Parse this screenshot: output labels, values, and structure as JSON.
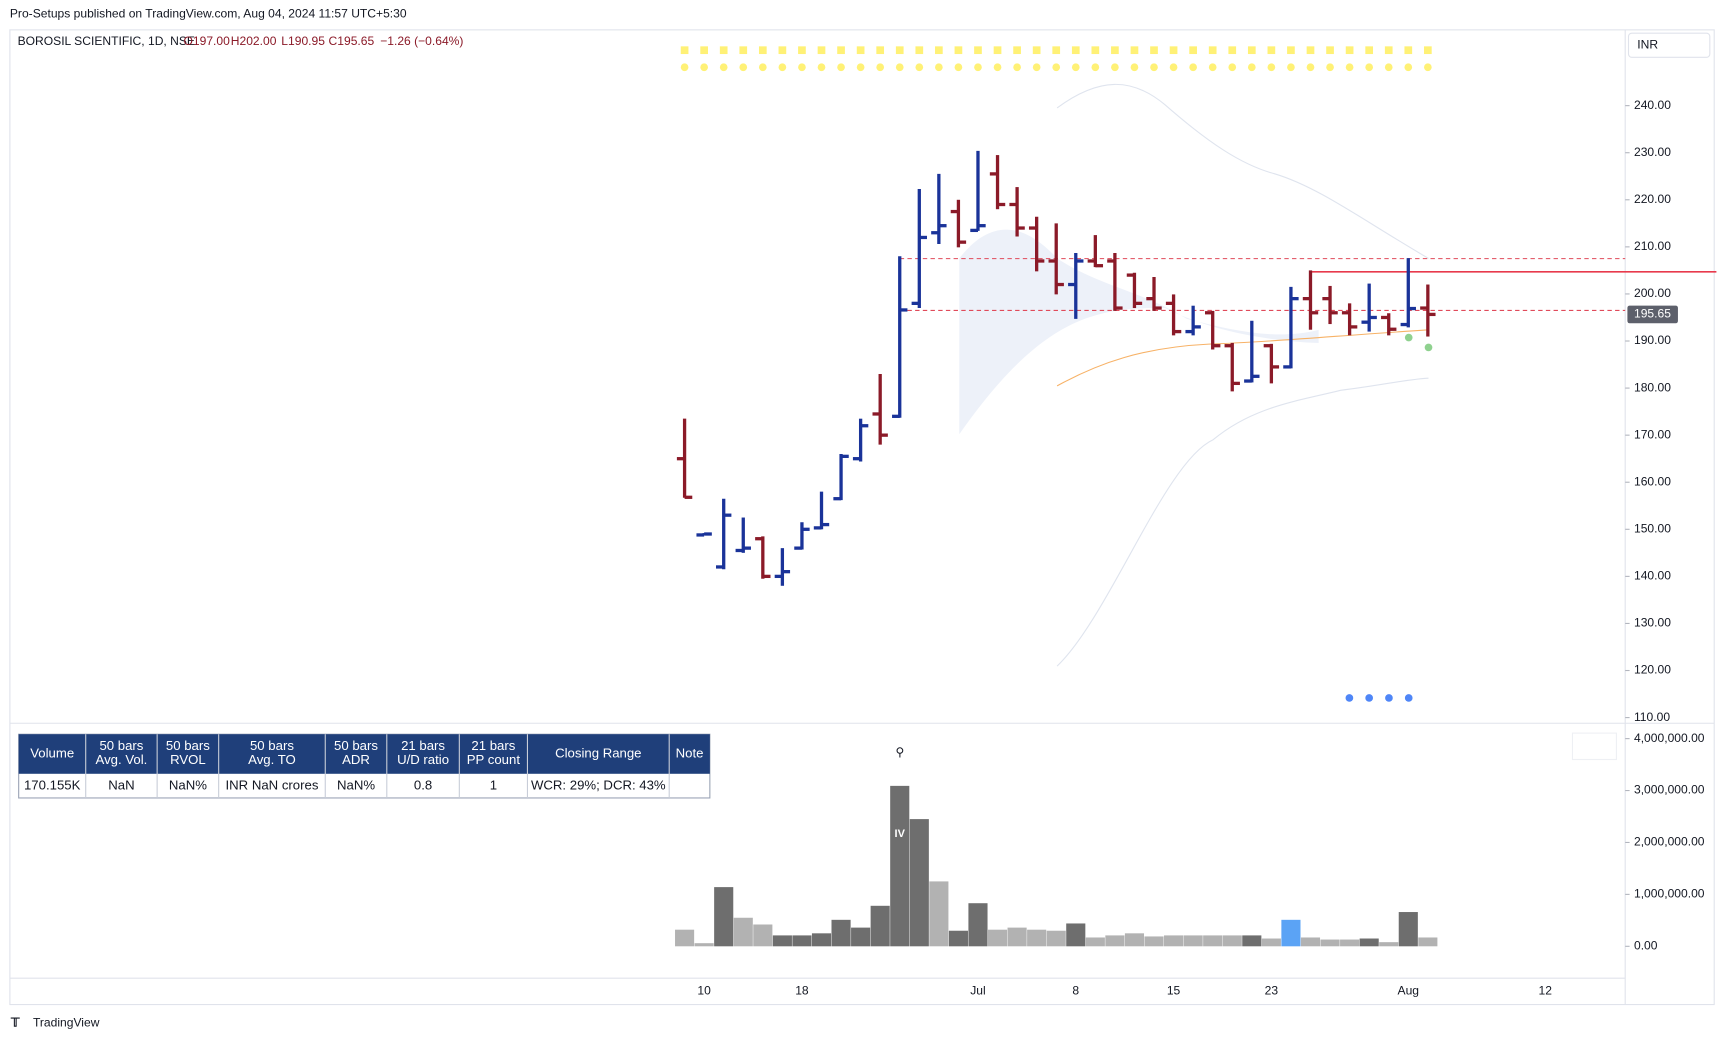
{
  "header": {
    "title": "Pro-Setups published on TradingView.com, Aug 04, 2024 11:57 UTC+5:30"
  },
  "legend": {
    "symbol": "BOROSIL SCIENTIFIC, 1D, NSE",
    "open": "O197.00",
    "high": "H202.00",
    "low": "L190.95",
    "close": "C195.65",
    "change": "−1.26 (−0.64%)",
    "currency": "INR"
  },
  "table": {
    "headers": [
      [
        "Volume"
      ],
      [
        "50 bars",
        "Avg. Vol."
      ],
      [
        "50 bars",
        "RVOL"
      ],
      [
        "50 bars",
        "Avg. TO"
      ],
      [
        "50 bars",
        "ADR"
      ],
      [
        "21 bars",
        "U/D ratio"
      ],
      [
        "21 bars",
        "PP count"
      ],
      [
        "Closing Range"
      ],
      [
        "Note"
      ]
    ],
    "rows": [
      [
        "170.155K",
        "NaN",
        "NaN%",
        "INR NaN crores",
        "NaN%",
        "0.8",
        "1",
        "WCR: 29%; DCR: 43%",
        ""
      ]
    ]
  },
  "footer": {
    "brand": "TradingView"
  },
  "chart_data": {
    "type": "ohlc",
    "categories": [
      null,
      "10",
      null,
      null,
      null,
      null,
      "18",
      null,
      null,
      null,
      null,
      null,
      null,
      null,
      null,
      "Jul",
      null,
      null,
      null,
      null,
      "8",
      null,
      null,
      null,
      null,
      "15",
      null,
      null,
      null,
      null,
      "23",
      null,
      null,
      null,
      null,
      null,
      null,
      "Aug",
      null,
      null,
      null,
      null,
      null,
      null,
      "12"
    ],
    "open": [
      165,
      148.8,
      142,
      145.5,
      148,
      140,
      146,
      150.3,
      156.5,
      165,
      174.5,
      174,
      198,
      213,
      217.5,
      213.5,
      225.5,
      219,
      214,
      207,
      202,
      207,
      207,
      204,
      199,
      198,
      192,
      196,
      189,
      181.5,
      189,
      184.5,
      199,
      199,
      196,
      194,
      195,
      193.5,
      197,
      null,
      null,
      null,
      null,
      null,
      null
    ],
    "high": [
      173.5,
      149.2,
      156.5,
      152.5,
      148.5,
      146,
      151.5,
      158,
      166,
      173.5,
      183,
      208,
      222.3,
      225.5,
      220,
      230.4,
      229.5,
      222.7,
      216.4,
      215,
      208.7,
      212.5,
      208.7,
      204.5,
      203.6,
      199.9,
      197.5,
      196.4,
      189.6,
      194.3,
      189.4,
      201.5,
      205,
      201.7,
      198,
      202.2,
      195.9,
      207.6,
      202,
      null,
      null,
      null,
      null,
      null,
      null
    ],
    "low": [
      156.7,
      148.8,
      141.5,
      145,
      139.5,
      138,
      145.7,
      150,
      156.2,
      164.4,
      168,
      173.7,
      197,
      210.6,
      209.9,
      213.4,
      218,
      212.2,
      204.8,
      199.9,
      194.7,
      205.7,
      196.4,
      197,
      196.4,
      191.2,
      191.2,
      188.2,
      179.3,
      181.2,
      181,
      184.2,
      192.4,
      193.6,
      191.2,
      192,
      191.2,
      192.9,
      190.95,
      null,
      null,
      null,
      null,
      null,
      null
    ],
    "close": [
      156.8,
      149,
      153,
      146,
      140,
      141,
      150,
      151,
      165.5,
      172,
      170,
      196.6,
      212,
      214.5,
      211,
      214.5,
      219,
      214,
      207,
      202,
      207,
      206,
      197,
      198,
      197,
      192,
      193,
      189,
      181,
      182.5,
      184.5,
      199,
      196,
      196,
      193,
      195,
      192.5,
      196.9,
      195.65,
      null,
      null,
      null,
      null,
      null,
      null
    ],
    "volume": [
      320000,
      60000,
      1140000,
      550000,
      420000,
      210000,
      210000,
      250000,
      510000,
      360000,
      780000,
      3090000,
      2450000,
      1250000,
      300000,
      830000,
      320000,
      360000,
      320000,
      300000,
      440000,
      170000,
      210000,
      250000,
      190000,
      210000,
      210000,
      210000,
      210000,
      210000,
      150000,
      510000,
      170000,
      130000,
      130000,
      150000,
      80000,
      660000,
      170000,
      null,
      null,
      null,
      null,
      null,
      null
    ],
    "volume_colors": [
      "#b2b2b2",
      "#b2b2b2",
      "#6e6e6e",
      "#b2b2b2",
      "#b2b2b2",
      "#6e6e6e",
      "#6e6e6e",
      "#6e6e6e",
      "#6e6e6e",
      "#6e6e6e",
      "#6e6e6e",
      "#6e6e6e",
      "#6e6e6e",
      "#b2b2b2",
      "#6e6e6e",
      "#6e6e6e",
      "#b2b2b2",
      "#b2b2b2",
      "#b2b2b2",
      "#b2b2b2",
      "#6e6e6e",
      "#b2b2b2",
      "#b2b2b2",
      "#b2b2b2",
      "#b2b2b2",
      "#b2b2b2",
      "#b2b2b2",
      "#b2b2b2",
      "#b2b2b2",
      "#6e6e6e",
      "#b2b2b2",
      "#5ba3f5",
      "#b2b2b2",
      "#b2b2b2",
      "#b2b2b2",
      "#6e6e6e",
      "#b2b2b2",
      "#6e6e6e",
      "#b2b2b2",
      null,
      null,
      null,
      null,
      null,
      null
    ],
    "volume_annotation": "IV",
    "up_color": "#1a3399",
    "down_color": "#8b1a28",
    "ylim": [
      108.8,
      255.4
    ],
    "yticks": [
      {
        "value": 110,
        "label": "110.00"
      },
      {
        "value": 120,
        "label": "120.00"
      },
      {
        "value": 130,
        "label": "130.00"
      },
      {
        "value": 140,
        "label": "140.00"
      },
      {
        "value": 150,
        "label": "150.00"
      },
      {
        "value": 160,
        "label": "160.00"
      },
      {
        "value": 170,
        "label": "170.00"
      },
      {
        "value": 180,
        "label": "180.00"
      },
      {
        "value": 190,
        "label": "190.00"
      },
      {
        "value": 200,
        "label": "200.00"
      },
      {
        "value": 210,
        "label": "210.00"
      },
      {
        "value": 220,
        "label": "220.00"
      },
      {
        "value": 230,
        "label": "230.00"
      },
      {
        "value": 240,
        "label": "240.00"
      }
    ],
    "y2lim": [
      0,
      4000000
    ],
    "y2ticks": [
      {
        "value": 0,
        "label": "0.00"
      },
      {
        "value": 1000000,
        "label": "1,000,000.00"
      },
      {
        "value": 2000000,
        "label": "2,000,000.00"
      },
      {
        "value": 3000000,
        "label": "3,000,000.00"
      },
      {
        "value": 4000000,
        "label": "4,000,000.00"
      }
    ],
    "levels": [
      {
        "value": 207.5,
        "style": "dashed",
        "color": "#e04a5a"
      },
      {
        "value": 196.5,
        "style": "dashed",
        "color": "#e04a5a"
      },
      {
        "value": 204.7,
        "style": "solid",
        "color": "#e83a4c"
      }
    ]
  }
}
